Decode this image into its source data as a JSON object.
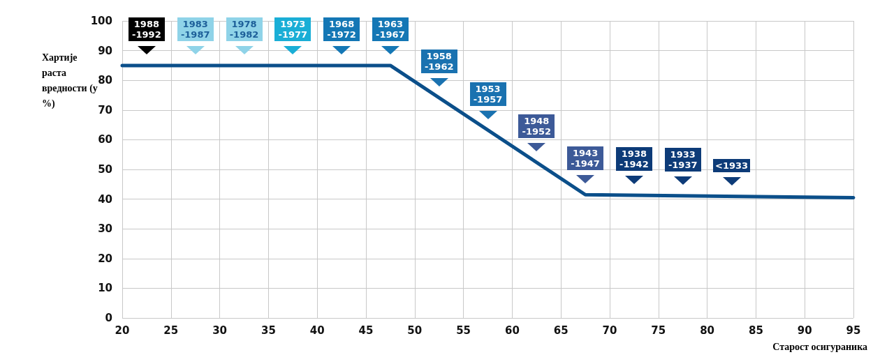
{
  "chart_data": {
    "type": "line",
    "xlabel": "Старост осигураника",
    "ylabel": "Хартије раста вредности (у %)",
    "series": [
      {
        "color": "#0b4f8a",
        "x": [
          20,
          47.5,
          67.5,
          95
        ],
        "values": [
          85,
          85,
          41.5,
          40.5
        ]
      }
    ],
    "xlim": [
      20,
      95
    ],
    "xticks": [
      20,
      25,
      30,
      35,
      40,
      45,
      50,
      55,
      60,
      65,
      70,
      75,
      80,
      85,
      90,
      95
    ],
    "ylim": [
      0,
      100
    ],
    "yticks": [
      0,
      10,
      20,
      30,
      40,
      50,
      60,
      70,
      80,
      90,
      100
    ],
    "grid": true,
    "marker": "none",
    "line_style": "solid",
    "annotations": [
      "1988\n-1992",
      "1983\n-1987",
      "1978\n-1982",
      "1973\n-1977",
      "1968\n-1972",
      "1963\n-1967",
      "1958\n-1962",
      "1953\n-1957",
      "1948\n-1952",
      "1943\n-1947",
      "1938\n-1942",
      "1933\n-1937",
      "<1933"
    ]
  }
}
